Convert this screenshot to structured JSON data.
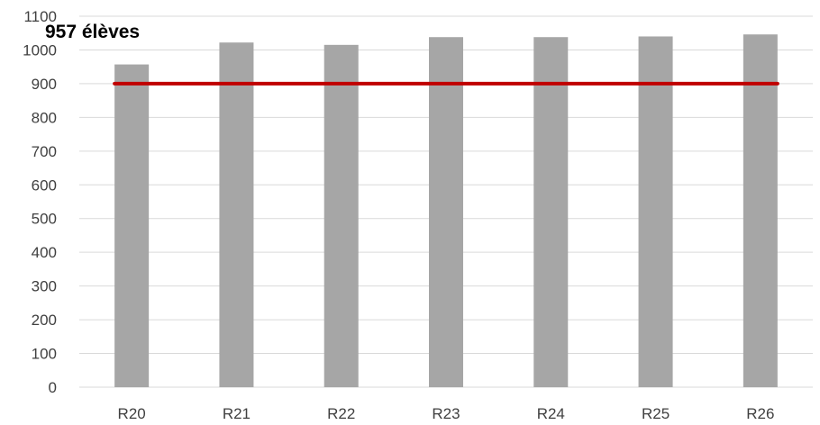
{
  "chart_data": {
    "type": "bar",
    "categories": [
      "R20",
      "R21",
      "R22",
      "R23",
      "R24",
      "R25",
      "R26"
    ],
    "values": [
      957,
      1022,
      1015,
      1038,
      1038,
      1040,
      1046
    ],
    "ylim": [
      0,
      1100
    ],
    "yticks": [
      0,
      100,
      200,
      300,
      400,
      500,
      600,
      700,
      800,
      900,
      1000,
      1100
    ],
    "grid": true,
    "reference_line": {
      "value": 900,
      "color": "#c00000"
    },
    "annotation": "957 élèves",
    "bar_color": "#a6a6a6"
  }
}
